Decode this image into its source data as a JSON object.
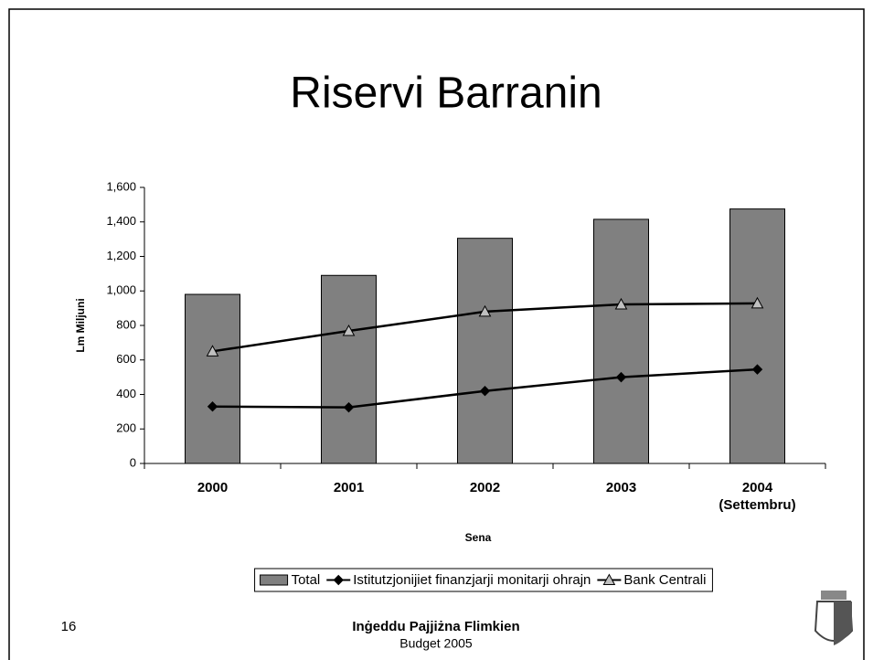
{
  "chart_data": {
    "type": "bar_line",
    "title": "Riservi Barranin",
    "y_label": "Lm Miljuni",
    "x_label": "Sena",
    "categories": [
      "2000",
      "2001",
      "2002",
      "2003",
      "2004\n(Settembru)"
    ],
    "series": [
      {
        "name": "Total",
        "type": "bar",
        "color": "#808080",
        "values": [
          980,
          1090,
          1305,
          1415,
          1475
        ]
      },
      {
        "name": "Istitutzjonijiet finanzjarji monitarji ohrajn",
        "type": "line",
        "marker": "diamond",
        "color": "#000000",
        "values": [
          330,
          325,
          420,
          500,
          545
        ]
      },
      {
        "name": "Bank Centrali",
        "type": "line",
        "marker": "triangle",
        "color": "#c0c0c0",
        "values": [
          650,
          768,
          880,
          922,
          928
        ]
      }
    ],
    "ylim": [
      0,
      1600
    ],
    "yticks": [
      0,
      200,
      400,
      600,
      800,
      {
        "value": 1000,
        "label": "1,000"
      },
      {
        "value": 1200,
        "label": "1,200"
      },
      {
        "value": 1400,
        "label": "1,400"
      },
      {
        "value": 1600,
        "label": "1,600"
      }
    ],
    "legend": "bottom"
  },
  "footer": {
    "page": "16",
    "slogan": "Inġeddu Pajjiżna Flimkien",
    "subtitle": "Budget 2005"
  }
}
